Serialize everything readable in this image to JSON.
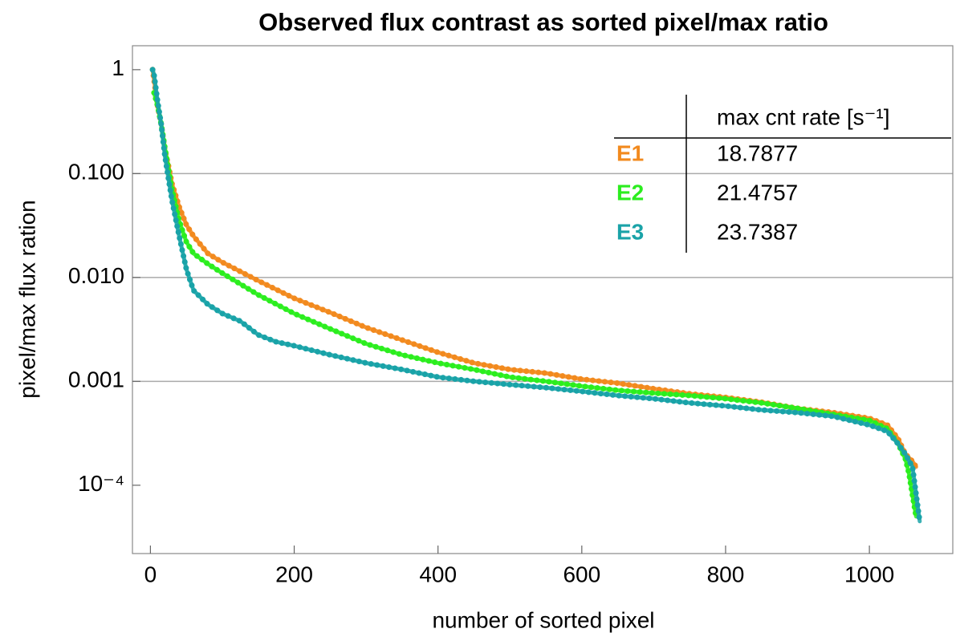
{
  "chart_data": {
    "type": "line",
    "title": "Observed flux contrast as sorted pixel/max ratio",
    "x_label": "number of sorted pixel",
    "y_label": "pixel/max flux ration",
    "log_y": true,
    "xlim": [
      -25,
      1116
    ],
    "ylim": [
      2.2e-05,
      1.7
    ],
    "xticks": [
      0,
      200,
      400,
      600,
      800,
      1000
    ],
    "yticks": [
      {
        "value": 1,
        "label": "1"
      },
      {
        "value": 0.1,
        "label": "0.100"
      },
      {
        "value": 0.01,
        "label": "0.010"
      },
      {
        "value": 0.001,
        "label": "0.001"
      },
      {
        "value": 0.0001,
        "label": "10⁻⁴"
      }
    ],
    "ygrid": [
      0.1,
      0.01,
      0.001
    ],
    "table_header": "max cnt rate [s⁻¹]",
    "series": [
      {
        "name": "E1",
        "color": "#f28a1e",
        "max_rate": "18.7877",
        "x": [
          3,
          10,
          15,
          20,
          25,
          30,
          40,
          50,
          60,
          80,
          100,
          150,
          200,
          250,
          300,
          350,
          400,
          450,
          500,
          550,
          600,
          650,
          700,
          750,
          800,
          850,
          900,
          950,
          1000,
          1025,
          1040,
          1050,
          1060,
          1065
        ],
        "values": [
          1.0,
          0.45,
          0.3,
          0.17,
          0.12,
          0.08,
          0.048,
          0.032,
          0.025,
          0.017,
          0.014,
          0.0093,
          0.0063,
          0.0046,
          0.0033,
          0.0025,
          0.0019,
          0.0015,
          0.0013,
          0.0012,
          0.00105,
          0.00096,
          0.00085,
          0.00076,
          0.0007,
          0.00063,
          0.00055,
          0.0005,
          0.00044,
          0.00038,
          0.00028,
          0.0002,
          0.00017,
          0.00015
        ]
      },
      {
        "name": "E2",
        "color": "#2ced1f",
        "max_rate": "21.4757",
        "x": [
          5,
          10,
          15,
          20,
          25,
          30,
          40,
          50,
          60,
          80,
          100,
          150,
          200,
          250,
          300,
          350,
          400,
          450,
          500,
          550,
          600,
          650,
          700,
          750,
          800,
          850,
          900,
          950,
          1000,
          1025,
          1040,
          1050,
          1055,
          1060,
          1065
        ],
        "values": [
          0.6,
          0.45,
          0.3,
          0.18,
          0.11,
          0.07,
          0.035,
          0.022,
          0.017,
          0.0135,
          0.011,
          0.0068,
          0.0045,
          0.0032,
          0.0023,
          0.0018,
          0.0015,
          0.0013,
          0.0011,
          0.001,
          0.0009,
          0.00082,
          0.00077,
          0.00073,
          0.00068,
          0.00062,
          0.00055,
          0.00048,
          0.00042,
          0.00035,
          0.00025,
          0.00018,
          0.00013,
          8e-05,
          5e-05
        ]
      },
      {
        "name": "E3",
        "color": "#1aa3a8",
        "max_rate": "23.7387",
        "x": [
          3,
          5,
          10,
          15,
          20,
          25,
          30,
          40,
          50,
          60,
          80,
          100,
          125,
          150,
          175,
          200,
          250,
          300,
          350,
          400,
          450,
          500,
          550,
          600,
          650,
          700,
          750,
          800,
          850,
          900,
          950,
          1000,
          1025,
          1040,
          1050,
          1060,
          1070
        ],
        "values": [
          1.0,
          0.9,
          0.5,
          0.3,
          0.15,
          0.09,
          0.055,
          0.025,
          0.012,
          0.0075,
          0.0055,
          0.0045,
          0.0038,
          0.0028,
          0.0024,
          0.0022,
          0.0018,
          0.0015,
          0.0013,
          0.0011,
          0.001,
          0.00093,
          0.00087,
          0.0008,
          0.00073,
          0.00068,
          0.00062,
          0.00058,
          0.00053,
          0.0005,
          0.00046,
          0.00038,
          0.00033,
          0.00025,
          0.0002,
          0.00015,
          4.5e-05
        ]
      }
    ]
  }
}
